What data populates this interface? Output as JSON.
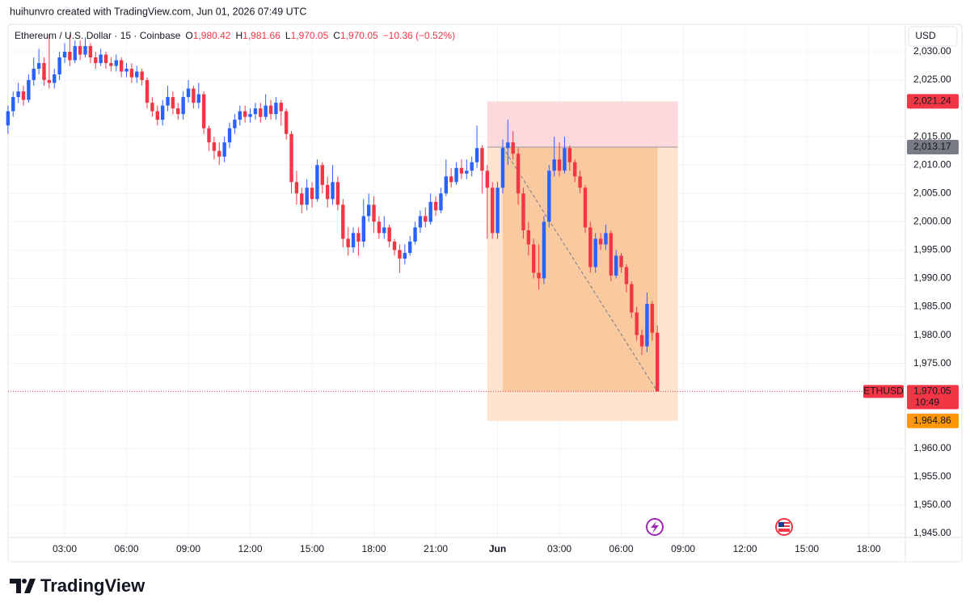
{
  "header": {
    "attribution": "huihunvro created with TradingView.com, Jun 01, 2026 07:49 UTC",
    "logo": "TradingView",
    "currency": "USD"
  },
  "chart_data": {
    "type": "candlestick",
    "title": "Ethereum / U.S. Dollar · 15 · Coinbase",
    "ohlc_legend": [
      {
        "key": "O",
        "value": "1,980.42"
      },
      {
        "key": "H",
        "value": "1,981.66"
      },
      {
        "key": "L",
        "value": "1,970.05"
      },
      {
        "key": "C",
        "value": "1,970.05"
      }
    ],
    "change": "−10.36 (−0.52%)",
    "x": [
      0.25,
      0.5,
      0.75,
      1,
      1.25,
      1.5,
      1.75,
      2,
      2.25,
      2.5,
      2.75,
      3,
      3.25,
      3.5,
      3.75,
      4,
      4.25,
      4.5,
      4.75,
      5,
      5.25,
      5.5,
      5.75,
      6,
      6.25,
      6.5,
      6.75,
      7,
      7.25,
      7.5,
      7.75,
      8,
      8.25,
      8.5,
      8.75,
      9,
      9.25,
      9.5,
      9.75,
      10,
      10.25,
      10.5,
      10.75,
      11,
      11.25,
      11.5,
      11.75,
      12,
      12.25,
      12.5,
      12.75,
      13,
      13.25,
      13.5,
      13.75,
      14,
      14.25,
      14.5,
      14.75,
      15,
      15.25,
      15.5,
      15.75,
      16,
      16.25,
      16.5,
      16.75,
      17,
      17.25,
      17.5,
      17.75,
      18,
      18.25,
      18.5,
      18.75,
      19,
      19.25,
      19.5,
      19.75,
      20,
      20.25,
      20.5,
      20.75,
      21,
      21.25,
      21.5,
      21.75,
      22,
      22.25,
      22.5,
      22.75,
      23,
      23.25,
      23.5,
      23.75,
      24,
      24.25,
      24.5,
      24.75,
      25,
      25.25,
      25.5,
      25.75,
      26,
      26.25,
      26.5,
      26.75,
      27,
      27.25,
      27.5,
      27.75,
      28,
      28.25,
      28.5,
      28.75,
      29,
      29.25,
      29.5,
      29.75,
      30,
      30.25,
      30.5,
      30.75,
      31,
      31.25,
      31.5,
      31.75
    ],
    "open": [
      2017,
      2019.5,
      2022,
      2023,
      2021.5,
      2025,
      2027,
      2028,
      2025,
      2024.5,
      2026,
      2029,
      2030,
      2028.5,
      2031,
      2029.5,
      2031,
      2029,
      2028,
      2029.5,
      2028,
      2027.5,
      2028.5,
      2026.5,
      2027,
      2025.5,
      2026.5,
      2025,
      2021,
      2019.5,
      2018,
      2020.5,
      2022,
      2020,
      2019,
      2022,
      2023.5,
      2021,
      2022.5,
      2016.5,
      2014,
      2012.5,
      2011.5,
      2014,
      2016.5,
      2018,
      2019.5,
      2018.5,
      2019,
      2020,
      2018.5,
      2020.5,
      2019,
      2021,
      2019.5,
      2015.5,
      2007,
      2005,
      2003,
      2006,
      2004,
      2010,
      2006.5,
      2004,
      2007,
      2003,
      1997,
      1995.5,
      1998,
      1996.5,
      2001,
      2003,
      2000,
      1998,
      1999,
      1996.5,
      1995,
      1993.5,
      1994.5,
      1996.5,
      1999,
      2001,
      2000,
      2003.5,
      2002,
      2005,
      2008,
      2007,
      2009.5,
      2008.5,
      2009,
      2010.5,
      2013,
      2009,
      2006,
      1998,
      2006,
      2013,
      2014,
      2012,
      2005,
      1998.5,
      1996,
      1991,
      1990,
      2000,
      2009,
      2011,
      2009,
      2013,
      2010.5,
      2008,
      2006,
      1999,
      1992,
      1997,
      1996,
      1998,
      1990.5,
      1994,
      1992,
      1989,
      1984,
      1980,
      1978,
      1985.5,
      1980.42
    ],
    "high": [
      2020.5,
      2023,
      2024.5,
      2024,
      2026,
      2029,
      2030.5,
      2029,
      2033,
      2027,
      2030,
      2031.5,
      2033,
      2032,
      2032,
      2032.5,
      2031.5,
      2030,
      2030.5,
      2030,
      2029,
      2029.5,
      2029,
      2028,
      2028,
      2027.5,
      2027,
      2025.5,
      2022,
      2020.5,
      2021.5,
      2024,
      2023,
      2021,
      2023,
      2025,
      2024,
      2024.5,
      2023,
      2017,
      2015,
      2014,
      2015,
      2017.5,
      2019,
      2020.5,
      2020.5,
      2020,
      2021,
      2021,
      2022.5,
      2021.5,
      2022,
      2021.5,
      2020,
      2016,
      2009,
      2006,
      2007.5,
      2007,
      2011,
      2010.5,
      2008,
      2010,
      2008,
      2004,
      1999,
      1999,
      1999,
      2004,
      2005,
      2004.5,
      2001,
      2001,
      1999.5,
      1997,
      1996,
      1996,
      1997.5,
      2000,
      2002,
      2002.5,
      2005,
      2004.5,
      2006,
      2011,
      2009.5,
      2010.5,
      2011,
      2011,
      2011.5,
      2017,
      2013.5,
      2010,
      2007,
      2007,
      2014.5,
      2018,
      2016,
      2013,
      2006,
      2000,
      1997,
      1996,
      2001,
      2010,
      2015,
      2014,
      2015,
      2013.5,
      2011,
      2009,
      2006.5,
      2000,
      1998,
      1998,
      1999.5,
      1998.5,
      1995,
      1994.5,
      1992.5,
      1989.5,
      1985,
      1981,
      1987.5,
      1986,
      1981.66
    ],
    "low": [
      2015.5,
      2018.5,
      2021,
      2020.5,
      2021,
      2024,
      2026,
      2024,
      2023.5,
      2023.5,
      2025,
      2028,
      2027.5,
      2028,
      2028.5,
      2029,
      2028,
      2027,
      2027.5,
      2027,
      2026.5,
      2026.5,
      2025.5,
      2025.5,
      2024.5,
      2024.5,
      2024,
      2020,
      2018.5,
      2017,
      2017,
      2019.5,
      2019,
      2018,
      2018,
      2021,
      2020,
      2020,
      2015.5,
      2012.5,
      2011,
      2010,
      2010.5,
      2013,
      2015.5,
      2017,
      2017.5,
      2017.5,
      2018,
      2017.5,
      2018,
      2018,
      2018,
      2017,
      2014.5,
      2005,
      2003,
      2001.5,
      2002,
      2002.5,
      2003.5,
      2005,
      2002.5,
      2003,
      2002,
      1995.5,
      1994,
      1994.5,
      1994,
      1995.5,
      2000,
      1998,
      1997,
      1997,
      1995.5,
      1994,
      1991,
      1992.5,
      1994,
      1996,
      1998,
      1999,
      1999.5,
      2001,
      2001.5,
      2004.5,
      2006,
      2006.5,
      2007.5,
      2007.5,
      2008,
      2009.5,
      2005,
      1997,
      1997,
      1997,
      2005,
      2010,
      2011,
      2003,
      1997,
      1994,
      1990,
      1988,
      1989,
      1999,
      2008,
      2008,
      2008.5,
      2009,
      2007,
      2005,
      1998,
      1991,
      1991,
      1995,
      1995,
      1989.5,
      1990,
      1991,
      1987.5,
      1983,
      1979,
      1976.5,
      1977,
      1979,
      1970.05
    ],
    "close": [
      2019.5,
      2022,
      2023,
      2021.5,
      2025,
      2027,
      2028,
      2025,
      2024.5,
      2026,
      2029,
      2030,
      2028.5,
      2031,
      2029.5,
      2031,
      2029,
      2028,
      2029.5,
      2028,
      2027.5,
      2028.5,
      2026.5,
      2027,
      2025.5,
      2026.5,
      2025,
      2021,
      2019.5,
      2018,
      2020.5,
      2022,
      2020,
      2019,
      2022,
      2023.5,
      2021,
      2022.5,
      2016.5,
      2014,
      2012.5,
      2011.5,
      2014,
      2016.5,
      2018,
      2019.5,
      2018.5,
      2019,
      2020,
      2018.5,
      2020.5,
      2019,
      2021,
      2019.5,
      2015.5,
      2007,
      2005,
      2003,
      2006,
      2004,
      2010,
      2006.5,
      2004,
      2007,
      2003,
      1997,
      1995.5,
      1998,
      1996.5,
      2001,
      2003,
      2000,
      1998,
      1999,
      1996.5,
      1995,
      1993.5,
      1994.5,
      1996.5,
      1999,
      2001,
      2000,
      2003.5,
      2002,
      2005,
      2008,
      2007,
      2009.5,
      2008.5,
      2009,
      2010.5,
      2013,
      2009,
      2006,
      1998,
      2006,
      2013,
      2014,
      2012,
      2005,
      1998.5,
      1996,
      1991,
      1990,
      2000,
      2009,
      2011,
      2009,
      2013,
      2010.5,
      2008,
      2006,
      1999,
      1992,
      1997,
      1996,
      1998,
      1990.5,
      1994,
      1992,
      1989,
      1984,
      1980,
      1978,
      1985.5,
      1980.42,
      1970.05
    ],
    "up_color": "#2962ff",
    "down_color": "#f23645",
    "xlim": [
      0.255,
      43.78
    ],
    "xticks": [
      {
        "value": 3,
        "label": "03:00"
      },
      {
        "value": 6,
        "label": "06:00"
      },
      {
        "value": 9,
        "label": "09:00"
      },
      {
        "value": 12,
        "label": "12:00"
      },
      {
        "value": 15,
        "label": "15:00"
      },
      {
        "value": 18,
        "label": "18:00"
      },
      {
        "value": 21,
        "label": "21:00"
      },
      {
        "value": 24,
        "label": "Jun"
      },
      {
        "value": 27,
        "label": "03:00"
      },
      {
        "value": 30,
        "label": "06:00"
      },
      {
        "value": 33,
        "label": "09:00"
      },
      {
        "value": 36,
        "label": "12:00"
      },
      {
        "value": 39,
        "label": "15:00"
      },
      {
        "value": 42,
        "label": "18:00"
      }
    ],
    "ylim": [
      1944.29,
      2034.85
    ],
    "yticks": [
      {
        "value": 2030,
        "label": "2,030.00"
      },
      {
        "value": 2025,
        "label": "2,025.00"
      },
      {
        "value": 2015,
        "label": "2,015.00"
      },
      {
        "value": 2010,
        "label": "2,010.00"
      },
      {
        "value": 2005,
        "label": "2,005.00"
      },
      {
        "value": 2000,
        "label": "2,000.00"
      },
      {
        "value": 1995,
        "label": "1,995.00"
      },
      {
        "value": 1990,
        "label": "1,990.00"
      },
      {
        "value": 1985,
        "label": "1,985.00"
      },
      {
        "value": 1980,
        "label": "1,980.00"
      },
      {
        "value": 1975,
        "label": "1,975.00"
      },
      {
        "value": 1960,
        "label": "1,960.00"
      },
      {
        "value": 1955,
        "label": "1,955.00"
      },
      {
        "value": 1950,
        "label": "1,950.00"
      },
      {
        "value": 1945,
        "label": "1,945.00"
      }
    ],
    "grid": true,
    "position": {
      "start": 23.5,
      "end": 32.75,
      "entry_time": 24.25,
      "stop": {
        "value": 2021.24,
        "label": "2,021.24"
      },
      "entry": {
        "value": 2013.17,
        "label": "2,013.17"
      },
      "target": {
        "value": 1964.86,
        "label": "1,964.86"
      }
    },
    "last_price": {
      "symbol": "ETHUSD",
      "value": 1970.05,
      "label": "1,970.05",
      "countdown": "10:49"
    }
  }
}
